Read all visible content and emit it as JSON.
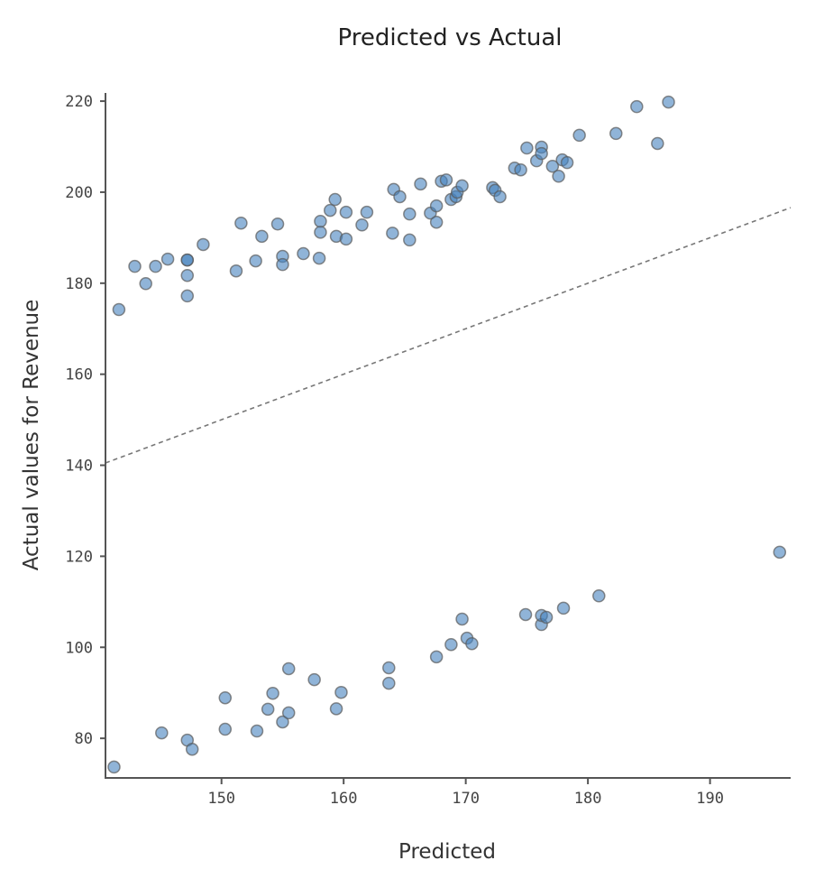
{
  "chart_data": {
    "type": "scatter",
    "title": "Predicted vs Actual",
    "xlabel": "Predicted",
    "ylabel": "Actual values for Revenue",
    "xlim": [
      140.5,
      196.6
    ],
    "ylim": [
      71.3,
      221.8
    ],
    "xticks": [
      150,
      160,
      170,
      180,
      190
    ],
    "yticks": [
      80,
      100,
      120,
      140,
      160,
      180,
      200,
      220
    ],
    "grid": false,
    "reference_line": {
      "type": "identity",
      "style": "dashed"
    },
    "point_color": "#4682be",
    "x": [
      141.6,
      142.9,
      143.8,
      144.6,
      145.6,
      147.2,
      147.2,
      147.2,
      147.2,
      148.5,
      151.2,
      151.6,
      152.8,
      153.3,
      154.6,
      155.0,
      155.0,
      156.7,
      158.0,
      158.1,
      158.1,
      158.9,
      159.3,
      159.4,
      160.2,
      160.2,
      161.5,
      161.9,
      164.0,
      164.1,
      164.6,
      165.4,
      165.4,
      166.3,
      167.1,
      167.6,
      167.6,
      168.0,
      168.4,
      168.8,
      169.2,
      169.3,
      169.7,
      172.2,
      172.4,
      172.8,
      174.0,
      174.5,
      175.0,
      175.8,
      176.2,
      176.2,
      177.1,
      177.6,
      177.9,
      178.3,
      179.3,
      182.3,
      184.0,
      185.7,
      186.6,
      141.2,
      145.1,
      147.2,
      147.6,
      150.3,
      150.3,
      152.9,
      153.8,
      154.2,
      155.0,
      155.5,
      155.5,
      157.6,
      159.4,
      159.8,
      163.7,
      163.7,
      167.6,
      168.8,
      169.7,
      170.1,
      170.5,
      174.9,
      176.2,
      176.2,
      176.6,
      178.0,
      180.9,
      195.7
    ],
    "y": [
      174.2,
      183.7,
      179.9,
      183.7,
      185.3,
      185.1,
      185.1,
      181.7,
      177.2,
      188.5,
      182.7,
      193.2,
      184.9,
      190.3,
      193.0,
      185.9,
      184.1,
      186.5,
      185.5,
      193.6,
      191.2,
      196.0,
      198.4,
      190.3,
      189.7,
      195.6,
      192.8,
      195.6,
      191.0,
      200.6,
      199.0,
      189.5,
      195.2,
      201.8,
      195.4,
      197.0,
      193.4,
      202.4,
      202.7,
      198.4,
      199.0,
      200.0,
      201.4,
      201.0,
      200.4,
      199.0,
      205.3,
      204.9,
      209.7,
      206.9,
      209.9,
      208.5,
      205.7,
      203.5,
      207.1,
      206.5,
      212.5,
      212.9,
      218.8,
      210.7,
      219.8,
      73.7,
      81.2,
      79.6,
      77.6,
      82.0,
      88.9,
      81.6,
      86.4,
      89.9,
      83.6,
      85.6,
      95.3,
      92.9,
      86.5,
      90.1,
      92.1,
      95.5,
      97.9,
      100.6,
      106.2,
      102.0,
      100.8,
      107.2,
      105.0,
      107.0,
      106.6,
      108.6,
      111.3,
      120.9
    ]
  }
}
